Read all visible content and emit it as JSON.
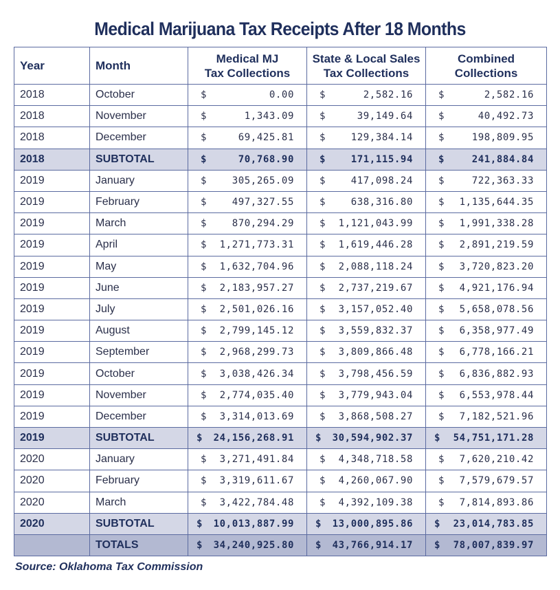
{
  "title": "Medical Marijuana Tax Receipts After 18 Months",
  "headers": {
    "year": "Year",
    "month": "Month",
    "mmj_line1": "Medical MJ",
    "mmj_line2": "Tax Collections",
    "sales_line1": "State & Local Sales",
    "sales_line2": "Tax Collections",
    "comb_line1": "Combined",
    "comb_line2": "Collections"
  },
  "currency_symbol": "$",
  "rows": [
    {
      "type": "month",
      "year": "2018",
      "month": "October",
      "mmj": "0.00",
      "sales": "2,582.16",
      "combined": "2,582.16"
    },
    {
      "type": "month",
      "year": "2018",
      "month": "November",
      "mmj": "1,343.09",
      "sales": "39,149.64",
      "combined": "40,492.73"
    },
    {
      "type": "month",
      "year": "2018",
      "month": "December",
      "mmj": "69,425.81",
      "sales": "129,384.14",
      "combined": "198,809.95"
    },
    {
      "type": "subtotal",
      "year": "2018",
      "month": "SUBTOTAL",
      "mmj": "70,768.90",
      "sales": "171,115.94",
      "combined": "241,884.84"
    },
    {
      "type": "month",
      "year": "2019",
      "month": "January",
      "mmj": "305,265.09",
      "sales": "417,098.24",
      "combined": "722,363.33"
    },
    {
      "type": "month",
      "year": "2019",
      "month": "February",
      "mmj": "497,327.55",
      "sales": "638,316.80",
      "combined": "1,135,644.35"
    },
    {
      "type": "month",
      "year": "2019",
      "month": "March",
      "mmj": "870,294.29",
      "sales": "1,121,043.99",
      "combined": "1,991,338.28"
    },
    {
      "type": "month",
      "year": "2019",
      "month": "April",
      "mmj": "1,271,773.31",
      "sales": "1,619,446.28",
      "combined": "2,891,219.59"
    },
    {
      "type": "month",
      "year": "2019",
      "month": "May",
      "mmj": "1,632,704.96",
      "sales": "2,088,118.24",
      "combined": "3,720,823.20"
    },
    {
      "type": "month",
      "year": "2019",
      "month": "June",
      "mmj": "2,183,957.27",
      "sales": "2,737,219.67",
      "combined": "4,921,176.94"
    },
    {
      "type": "month",
      "year": "2019",
      "month": "July",
      "mmj": "2,501,026.16",
      "sales": "3,157,052.40",
      "combined": "5,658,078.56"
    },
    {
      "type": "month",
      "year": "2019",
      "month": "August",
      "mmj": "2,799,145.12",
      "sales": "3,559,832.37",
      "combined": "6,358,977.49"
    },
    {
      "type": "month",
      "year": "2019",
      "month": "September",
      "mmj": "2,968,299.73",
      "sales": "3,809,866.48",
      "combined": "6,778,166.21"
    },
    {
      "type": "month",
      "year": "2019",
      "month": "October",
      "mmj": "3,038,426.34",
      "sales": "3,798,456.59",
      "combined": "6,836,882.93"
    },
    {
      "type": "month",
      "year": "2019",
      "month": "November",
      "mmj": "2,774,035.40",
      "sales": "3,779,943.04",
      "combined": "6,553,978.44"
    },
    {
      "type": "month",
      "year": "2019",
      "month": "December",
      "mmj": "3,314,013.69",
      "sales": "3,868,508.27",
      "combined": "7,182,521.96"
    },
    {
      "type": "subtotal",
      "year": "2019",
      "month": "SUBTOTAL",
      "mmj": "24,156,268.91",
      "sales": "30,594,902.37",
      "combined": "54,751,171.28"
    },
    {
      "type": "month",
      "year": "2020",
      "month": "January",
      "mmj": "3,271,491.84",
      "sales": "4,348,718.58",
      "combined": "7,620,210.42"
    },
    {
      "type": "month",
      "year": "2020",
      "month": "February",
      "mmj": "3,319,611.67",
      "sales": "4,260,067.90",
      "combined": "7,579,679.57"
    },
    {
      "type": "month",
      "year": "2020",
      "month": "March",
      "mmj": "3,422,784.48",
      "sales": "4,392,109.38",
      "combined": "7,814,893.86"
    },
    {
      "type": "subtotal",
      "year": "2020",
      "month": "SUBTOTAL",
      "mmj": "10,013,887.99",
      "sales": "13,000,895.86",
      "combined": "23,014,783.85"
    },
    {
      "type": "totals",
      "year": "",
      "month": "TOTALS",
      "mmj": "34,240,925.80",
      "sales": "43,766,914.17",
      "combined": "78,007,839.97"
    }
  ],
  "source": "Source: Oklahoma Tax Commission",
  "colors": {
    "title": "#1f2f5c",
    "border": "#5a6aa0",
    "subtotal_bg": "#d4d7e6",
    "totals_bg": "#b3b9d2"
  }
}
